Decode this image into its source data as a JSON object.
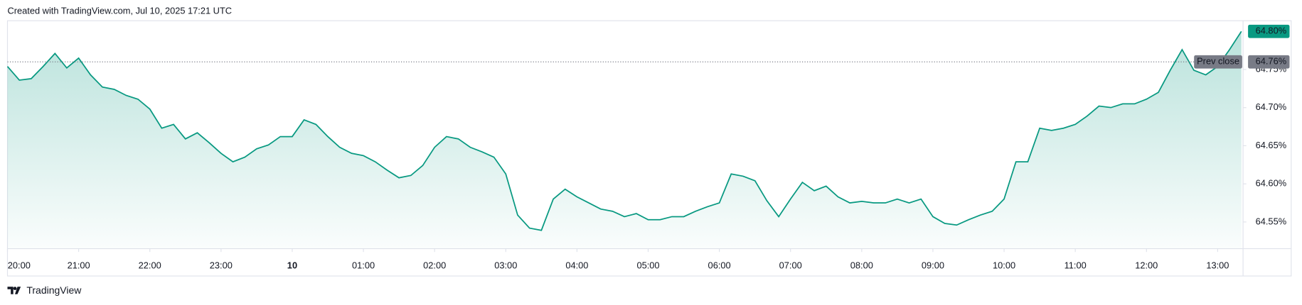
{
  "chart_data": {
    "type": "line",
    "title": "Created with TradingView.com, Jul 10, 2025 17:21 UTC",
    "source": "TradingView",
    "x": [
      "20:00",
      "20:10",
      "20:20",
      "20:30",
      "20:40",
      "20:50",
      "21:00",
      "21:10",
      "21:20",
      "21:30",
      "21:40",
      "21:50",
      "22:00",
      "22:10",
      "22:20",
      "22:30",
      "22:40",
      "22:50",
      "23:00",
      "23:10",
      "23:20",
      "23:30",
      "23:40",
      "23:50",
      "00:00",
      "00:10",
      "00:20",
      "00:30",
      "00:40",
      "00:50",
      "01:00",
      "01:10",
      "01:20",
      "01:30",
      "01:40",
      "01:50",
      "02:00",
      "02:10",
      "02:20",
      "02:30",
      "02:40",
      "02:50",
      "03:00",
      "03:10",
      "03:20",
      "03:30",
      "03:40",
      "03:50",
      "04:00",
      "04:10",
      "04:20",
      "04:30",
      "04:40",
      "04:50",
      "05:00",
      "05:10",
      "05:20",
      "05:30",
      "05:40",
      "05:50",
      "06:00",
      "06:10",
      "06:20",
      "06:30",
      "06:40",
      "06:50",
      "07:00",
      "07:10",
      "07:20",
      "07:30",
      "07:40",
      "07:50",
      "08:00",
      "08:10",
      "08:20",
      "08:30",
      "08:40",
      "08:50",
      "09:00",
      "09:10",
      "09:20",
      "09:30",
      "09:40",
      "09:50",
      "10:00",
      "10:10",
      "10:20",
      "10:30",
      "10:40",
      "10:50",
      "11:00",
      "11:10",
      "11:20",
      "11:30",
      "11:40",
      "11:50",
      "12:00",
      "12:10",
      "12:20",
      "12:30",
      "12:40",
      "12:50",
      "13:00",
      "13:10",
      "13:20"
    ],
    "series": [
      {
        "color": "#089981",
        "values": [
          64.754,
          64.736,
          64.738,
          64.754,
          64.771,
          64.752,
          64.765,
          64.743,
          64.727,
          64.724,
          64.716,
          64.711,
          64.698,
          64.673,
          64.678,
          64.659,
          64.667,
          64.654,
          64.64,
          64.629,
          64.635,
          64.646,
          64.651,
          64.662,
          64.662,
          64.684,
          64.678,
          64.662,
          64.648,
          64.64,
          64.637,
          64.629,
          64.618,
          64.608,
          64.611,
          64.624,
          64.648,
          64.662,
          64.659,
          64.648,
          64.642,
          64.635,
          64.613,
          64.559,
          64.542,
          64.539,
          64.58,
          64.593,
          64.583,
          64.575,
          64.567,
          64.564,
          64.557,
          64.561,
          64.553,
          64.553,
          64.557,
          64.557,
          64.564,
          64.57,
          64.575,
          64.613,
          64.61,
          64.604,
          64.578,
          64.557,
          64.58,
          64.602,
          64.591,
          64.597,
          64.583,
          64.575,
          64.577,
          64.575,
          64.575,
          64.58,
          64.575,
          64.58,
          64.557,
          64.548,
          64.546,
          64.553,
          64.559,
          64.564,
          64.58,
          64.629,
          64.629,
          64.673,
          64.67,
          64.673,
          64.678,
          64.689,
          64.702,
          64.7,
          64.705,
          64.705,
          64.711,
          64.72,
          64.749,
          64.776,
          64.749,
          64.743,
          64.754,
          64.776,
          64.8
        ]
      }
    ],
    "ylim": [
      64.515,
      64.814
    ],
    "yticks": [
      {
        "value": 64.55,
        "label": "64.55%"
      },
      {
        "value": 64.6,
        "label": "64.60%"
      },
      {
        "value": 64.65,
        "label": "64.65%"
      },
      {
        "value": 64.7,
        "label": "64.70%"
      },
      {
        "value": 64.75,
        "label": "64.75%"
      }
    ],
    "xticks": [
      "20:00",
      "21:00",
      "22:00",
      "23:00",
      {
        "value": "00:00",
        "label": "10"
      },
      "01:00",
      "02:00",
      "03:00",
      "04:00",
      "05:00",
      "06:00",
      "07:00",
      "08:00",
      "09:00",
      "10:00",
      "11:00",
      "12:00",
      "13:00"
    ],
    "prev_close": {
      "label": "Prev close",
      "value": 64.76,
      "value_label": "64.76%"
    },
    "last_price": {
      "value": 64.8,
      "label": "64.80%"
    }
  }
}
